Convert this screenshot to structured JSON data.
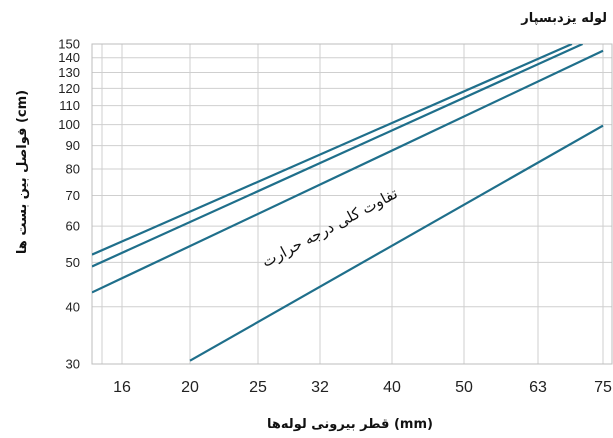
{
  "chart_data": {
    "type": "line",
    "title": "لوله یزدبسپار",
    "xlabel": "قطر بیرونی لوله‌ها (mm)",
    "ylabel": "فواصل بین بست ها (cm)",
    "annotation": "تفاوت کلی درجه حرارت",
    "x_ticks": [
      "16",
      "20",
      "25",
      "32",
      "40",
      "50",
      "63",
      "75"
    ],
    "y_ticks": [
      "30",
      "40",
      "50",
      "60",
      "70",
      "80",
      "90",
      "100",
      "110",
      "120",
      "130",
      "140",
      "150"
    ],
    "ylim": [
      30,
      150
    ],
    "grid": true,
    "series_color": "#1f6f8b",
    "series": [
      {
        "x": [
          "14",
          "69"
        ],
        "y": [
          52,
          150
        ]
      },
      {
        "x": [
          "14",
          "71"
        ],
        "y": [
          49,
          150
        ]
      },
      {
        "x": [
          "14",
          "75"
        ],
        "y": [
          43,
          145
        ]
      },
      {
        "x": [
          "20",
          "75"
        ],
        "y": [
          30.5,
          99.5
        ]
      }
    ]
  }
}
